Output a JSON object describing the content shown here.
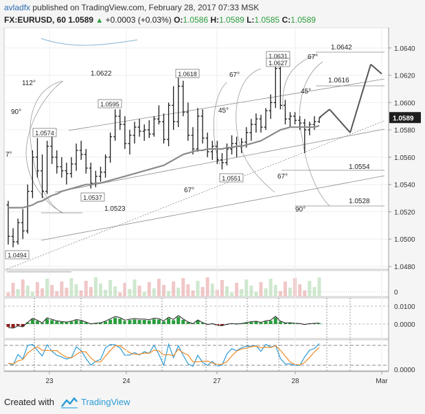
{
  "header": {
    "author": "avladfx",
    "published": "published on TradingView.com, February 28, 2017 07:33 MSK",
    "symbol": "FX:EURUSD, 60",
    "last": "1.0589",
    "change": "+0.0003 (+0.03%)",
    "o_label": "O:",
    "o_value": "1.0586",
    "h_label": "H:",
    "h_value": "1.0589",
    "l_label": "L:",
    "l_value": "1.0585",
    "c_label": "C:",
    "c_value": "1.0589"
  },
  "footer": {
    "created": "Created with",
    "brand": "TradingView"
  },
  "colors": {
    "price_badge": "#1e1e1e",
    "accent": "#2b9bd6",
    "up": "#2a9d3c",
    "down": "#8b1a1a"
  },
  "chart_data": {
    "type": "candlestick",
    "price_axis": {
      "ticks": [
        "1.0640",
        "1.0620",
        "1.0600",
        "1.0580",
        "1.0560",
        "1.0540",
        "1.0520",
        "1.0500",
        "1.0480"
      ],
      "last_badge": "1.0589",
      "ylim": [
        1.0478,
        1.0655
      ]
    },
    "time_axis": {
      "labels": [
        "23",
        "24",
        "27",
        "28",
        "Mar"
      ]
    },
    "ohlc": [
      [
        1.0525,
        1.0528,
        1.0496,
        1.0502
      ],
      [
        1.0502,
        1.0508,
        1.0494,
        1.0498
      ],
      [
        1.0498,
        1.0515,
        1.0496,
        1.0512
      ],
      [
        1.0512,
        1.0522,
        1.05,
        1.0506
      ],
      [
        1.0506,
        1.054,
        1.0504,
        1.0535
      ],
      [
        1.0535,
        1.0565,
        1.053,
        1.056
      ],
      [
        1.056,
        1.0574,
        1.0545,
        1.055
      ],
      [
        1.055,
        1.0562,
        1.053,
        1.0535
      ],
      [
        1.0535,
        1.0572,
        1.0533,
        1.0568
      ],
      [
        1.0568,
        1.0576,
        1.0555,
        1.056
      ],
      [
        1.056,
        1.0565,
        1.0548,
        1.0553
      ],
      [
        1.0553,
        1.056,
        1.0545,
        1.055
      ],
      [
        1.055,
        1.0556,
        1.054,
        1.0548
      ],
      [
        1.0548,
        1.056,
        1.0545,
        1.0555
      ],
      [
        1.0555,
        1.057,
        1.055,
        1.0565
      ],
      [
        1.0565,
        1.0572,
        1.0558,
        1.0562
      ],
      [
        1.0562,
        1.0566,
        1.0548,
        1.0552
      ],
      [
        1.0552,
        1.0556,
        1.0537,
        1.0541
      ],
      [
        1.0541,
        1.055,
        1.0538,
        1.0546
      ],
      [
        1.0546,
        1.0553,
        1.0542,
        1.0549
      ],
      [
        1.0549,
        1.0562,
        1.0545,
        1.056
      ],
      [
        1.056,
        1.0578,
        1.0556,
        1.0575
      ],
      [
        1.0575,
        1.0595,
        1.0572,
        1.059
      ],
      [
        1.059,
        1.0595,
        1.058,
        1.0584
      ],
      [
        1.0584,
        1.059,
        1.0566,
        1.057
      ],
      [
        1.057,
        1.058,
        1.0562,
        1.0576
      ],
      [
        1.0576,
        1.0586,
        1.057,
        1.0582
      ],
      [
        1.0582,
        1.0588,
        1.0575,
        1.0579
      ],
      [
        1.0579,
        1.0584,
        1.0572,
        1.058
      ],
      [
        1.058,
        1.0587,
        1.0574,
        1.0577
      ],
      [
        1.0577,
        1.059,
        1.0575,
        1.0588
      ],
      [
        1.0588,
        1.0598,
        1.0584,
        1.0586
      ],
      [
        1.0586,
        1.0592,
        1.057,
        1.0573
      ],
      [
        1.0573,
        1.06,
        1.0568,
        1.0598
      ],
      [
        1.0598,
        1.0612,
        1.058,
        1.0586
      ],
      [
        1.0586,
        1.0618,
        1.0582,
        1.0612
      ],
      [
        1.0612,
        1.0616,
        1.059,
        1.0593
      ],
      [
        1.0593,
        1.06,
        1.0572,
        1.0576
      ],
      [
        1.0576,
        1.0582,
        1.0562,
        1.0566
      ],
      [
        1.0566,
        1.0596,
        1.0564,
        1.059
      ],
      [
        1.059,
        1.0595,
        1.057,
        1.0574
      ],
      [
        1.0574,
        1.0578,
        1.056,
        1.0564
      ],
      [
        1.0564,
        1.0572,
        1.0558,
        1.0568
      ],
      [
        1.0568,
        1.0572,
        1.0555,
        1.0558
      ],
      [
        1.0558,
        1.0563,
        1.0551,
        1.0556
      ],
      [
        1.0556,
        1.057,
        1.0554,
        1.0566
      ],
      [
        1.0566,
        1.0576,
        1.0562,
        1.057
      ],
      [
        1.057,
        1.0575,
        1.056,
        1.0568
      ],
      [
        1.0568,
        1.0574,
        1.0563,
        1.0571
      ],
      [
        1.0571,
        1.0582,
        1.0567,
        1.0578
      ],
      [
        1.0578,
        1.0588,
        1.0572,
        1.0584
      ],
      [
        1.0584,
        1.0592,
        1.0578,
        1.0588
      ],
      [
        1.0588,
        1.0591,
        1.0578,
        1.0582
      ],
      [
        1.0582,
        1.0596,
        1.058,
        1.0594
      ],
      [
        1.0594,
        1.0606,
        1.0588,
        1.06
      ],
      [
        1.06,
        1.0631,
        1.0596,
        1.0625
      ],
      [
        1.0625,
        1.0627,
        1.0595,
        1.0598
      ],
      [
        1.0598,
        1.0602,
        1.0584,
        1.0588
      ],
      [
        1.0588,
        1.0593,
        1.0582,
        1.059
      ],
      [
        1.059,
        1.0593,
        1.0584,
        1.0587
      ],
      [
        1.0587,
        1.059,
        1.058,
        1.0585
      ],
      [
        1.0585,
        1.0588,
        1.0563,
        1.058
      ],
      [
        1.058,
        1.0586,
        1.0576,
        1.0584
      ],
      [
        1.0584,
        1.059,
        1.058,
        1.0586
      ],
      [
        1.0586,
        1.0589,
        1.0585,
        1.0589
      ]
    ],
    "moving_average": [
      1.0523,
      1.0523,
      1.0523,
      1.0523,
      1.0524,
      1.0525,
      1.0527,
      1.0528,
      1.053,
      1.0532,
      1.0533,
      1.0535,
      1.0536,
      1.0537,
      1.0538,
      1.0539,
      1.054,
      1.054,
      1.0541,
      1.0541,
      1.0542,
      1.0543,
      1.0544,
      1.0545,
      1.0546,
      1.0547,
      1.0548,
      1.0549,
      1.055,
      1.0551,
      1.0552,
      1.0553,
      1.0554,
      1.0556,
      1.0558,
      1.056,
      1.0562,
      1.0563,
      1.0564,
      1.0565,
      1.0565,
      1.0566,
      1.0566,
      1.0566,
      1.0566,
      1.0567,
      1.0567,
      1.0568,
      1.0568,
      1.0569,
      1.057,
      1.0571,
      1.0572,
      1.0574,
      1.0576,
      1.0578,
      1.058,
      1.0581,
      1.0582,
      1.0582,
      1.0582,
      1.0582,
      1.0582,
      1.0582,
      1.0583
    ],
    "projection": [
      [
        1.0589,
        1.0595
      ],
      [
        1.0595,
        1.0578
      ],
      [
        1.0578,
        1.0628
      ],
      [
        1.0628,
        1.0621
      ]
    ],
    "price_labels": [
      "1.0494",
      "1.0537",
      "1.0551",
      "1.0574",
      "1.0595",
      "1.0618",
      "1.0631",
      "1.0627"
    ],
    "level_labels": [
      "1.0642",
      "1.0622",
      "1.0616",
      "1.0523",
      "1.0554",
      "1.0528"
    ],
    "angle_labels": [
      "112°",
      "90°",
      "7°",
      "67°",
      "45°",
      "67°",
      "45°",
      "67°",
      "90°",
      "67°"
    ],
    "macd": {
      "ticks": [
        "0.0100",
        "0.0000"
      ]
    },
    "stochastic": {
      "ticks": [
        "0.0000"
      ]
    }
  }
}
